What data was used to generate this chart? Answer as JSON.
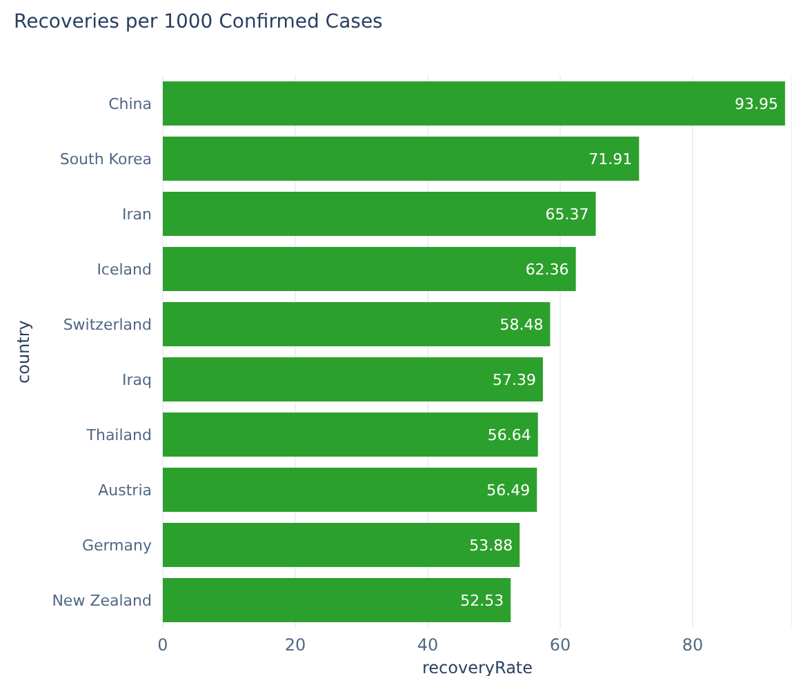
{
  "chart_data": {
    "type": "bar",
    "orientation": "horizontal",
    "title": "Recoveries per 1000 Confirmed Cases",
    "xlabel": "recoveryRate",
    "ylabel": "country",
    "categories": [
      "China",
      "South Korea",
      "Iran",
      "Iceland",
      "Switzerland",
      "Iraq",
      "Thailand",
      "Austria",
      "Germany",
      "New Zealand"
    ],
    "values": [
      93.95,
      71.91,
      65.37,
      62.36,
      58.48,
      57.39,
      56.64,
      56.49,
      53.88,
      52.53
    ],
    "color": "#2ca02c",
    "xlim": [
      0,
      95
    ],
    "xticks": [
      0,
      20,
      40,
      60,
      80
    ],
    "grid": "x",
    "data_labels": true
  }
}
